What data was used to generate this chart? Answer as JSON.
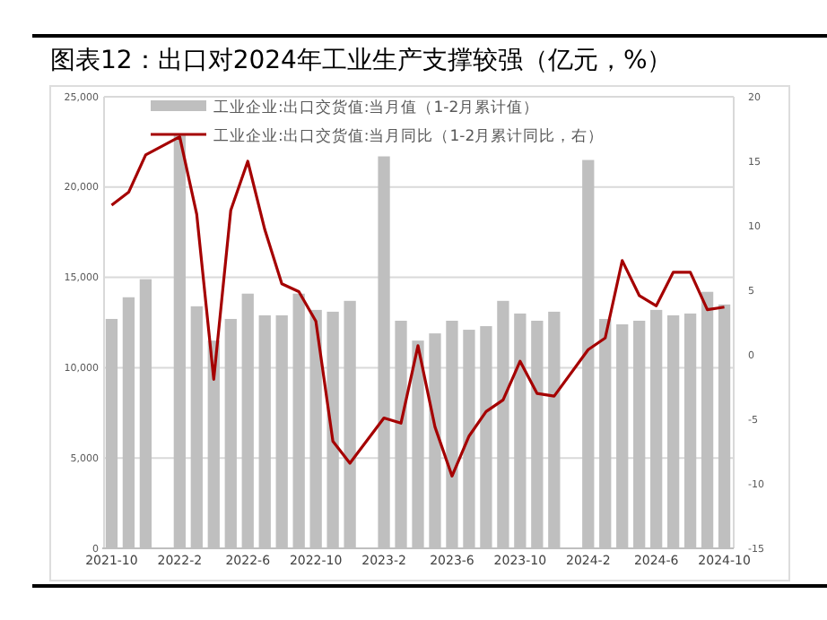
{
  "chart_data": {
    "type": "bar",
    "title": "图表12：出口对2024年工业生产支撑较强（亿元，%）",
    "categories": [
      "2021-10",
      null,
      null,
      null,
      "2022-2",
      null,
      null,
      null,
      "2022-6",
      null,
      null,
      null,
      "2022-10",
      null,
      null,
      null,
      "2023-2",
      null,
      null,
      null,
      "2023-6",
      null,
      null,
      null,
      "2023-10",
      null,
      null,
      null,
      "2024-2",
      null,
      null,
      null,
      "2024-6",
      null,
      null,
      null,
      "2024-10"
    ],
    "series": [
      {
        "name": "工业企业:出口交货值:当月值（1-2月累计值）",
        "color": "#bfbfbf",
        "values": [
          12700,
          13900,
          14900,
          null,
          22900,
          13400,
          11500,
          12700,
          14100,
          12900,
          12900,
          14100,
          13200,
          13100,
          13700,
          null,
          21700,
          12600,
          11500,
          11900,
          12600,
          12100,
          12300,
          13700,
          13000,
          12600,
          13100,
          null,
          21500,
          12700,
          12400,
          12600,
          13200,
          12900,
          13000,
          14200,
          13500
        ]
      },
      {
        "name": "工业企业:出口交货值:当月同比（1-2月累计同比，右）",
        "type": "line",
        "axis": "y2",
        "color": "#a50000",
        "values": [
          11.6,
          12.6,
          15.5,
          null,
          16.9,
          10.9,
          -1.9,
          11.2,
          15.0,
          9.7,
          5.5,
          4.9,
          2.6,
          -6.7,
          -8.4,
          null,
          -4.9,
          -5.3,
          0.7,
          -5.6,
          -9.4,
          -6.3,
          -4.4,
          -3.5,
          -0.5,
          -3.0,
          -3.2,
          null,
          0.4,
          1.3,
          7.3,
          4.6,
          3.8,
          6.4,
          6.4,
          3.5,
          3.7
        ]
      }
    ],
    "ylim": [
      0,
      25000
    ],
    "yticks": [
      {
        "value": 0,
        "label": "0"
      },
      {
        "value": 5000,
        "label": "5,000"
      },
      {
        "value": 10000,
        "label": "10,000"
      },
      {
        "value": 15000,
        "label": "15,000"
      },
      {
        "value": 20000,
        "label": "20,000"
      },
      {
        "value": 25000,
        "label": "25,000"
      }
    ],
    "y2lim": [
      -15,
      20
    ],
    "y2ticks": [
      -15,
      -10,
      -5,
      0,
      5,
      10,
      15,
      20
    ],
    "grid": "y",
    "legend": "top"
  }
}
